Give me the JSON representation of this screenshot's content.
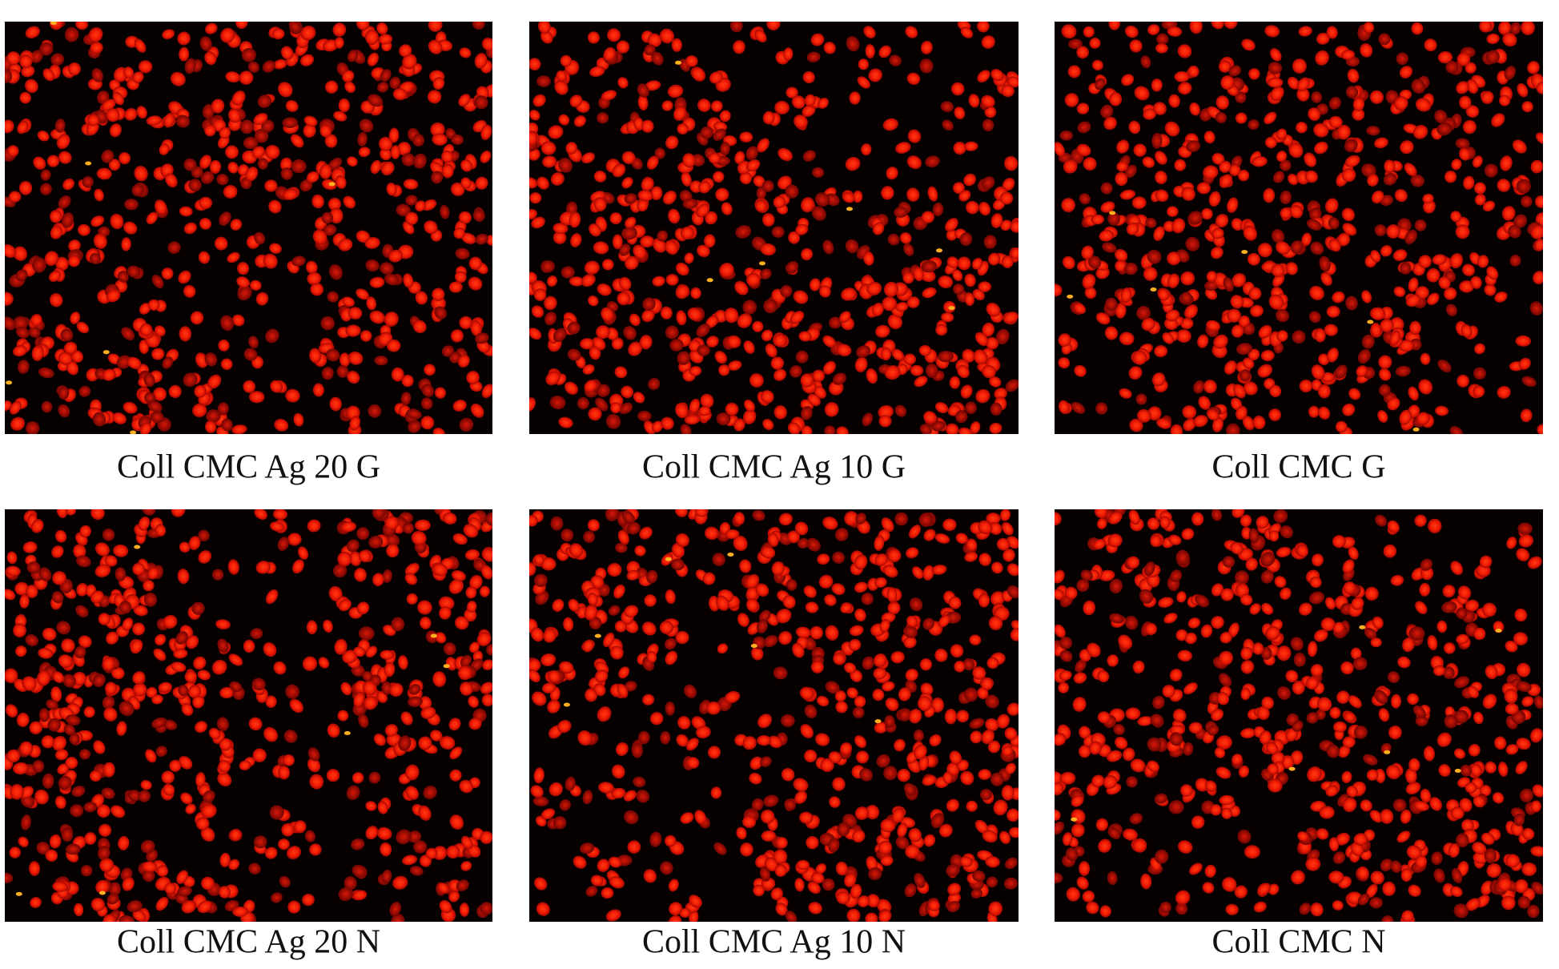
{
  "panels": [
    {
      "label": "Coll CMC Ag 20 G"
    },
    {
      "label": "Coll CMC Ag 10 G"
    },
    {
      "label": "Coll CMC G"
    },
    {
      "label": "Coll CMC Ag 20 N"
    },
    {
      "label": "Coll CMC Ag 10 N"
    },
    {
      "label": "Coll CMC N"
    }
  ]
}
